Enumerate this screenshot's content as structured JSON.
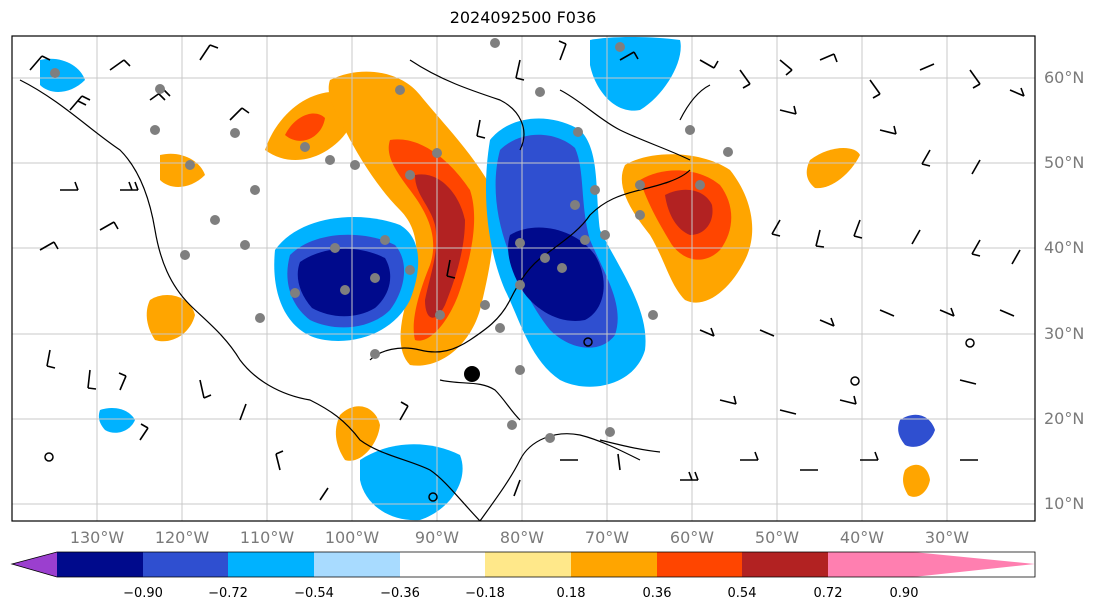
{
  "title": "2024092500 F036",
  "lat_labels": [
    "60°N",
    "50°N",
    "40°N",
    "30°N",
    "20°N",
    "10°N"
  ],
  "lon_labels": [
    "130°W",
    "120°W",
    "110°W",
    "100°W",
    "90°W",
    "80°W",
    "70°W",
    "60°W",
    "50°W",
    "40°W",
    "30°W"
  ],
  "colorbar": {
    "ticks": [
      "−0.90",
      "−0.72",
      "−0.54",
      "−0.36",
      "−0.18",
      "0.18",
      "0.36",
      "0.54",
      "0.72",
      "0.90"
    ],
    "colors": [
      "#9b3fcf",
      "#000a8c",
      "#2f4fd0",
      "#00b2ff",
      "#a8dbff",
      "#ffffff",
      "#ffe88a",
      "#ffa500",
      "#ff4500",
      "#b22222",
      "#ff7fb0"
    ]
  }
}
